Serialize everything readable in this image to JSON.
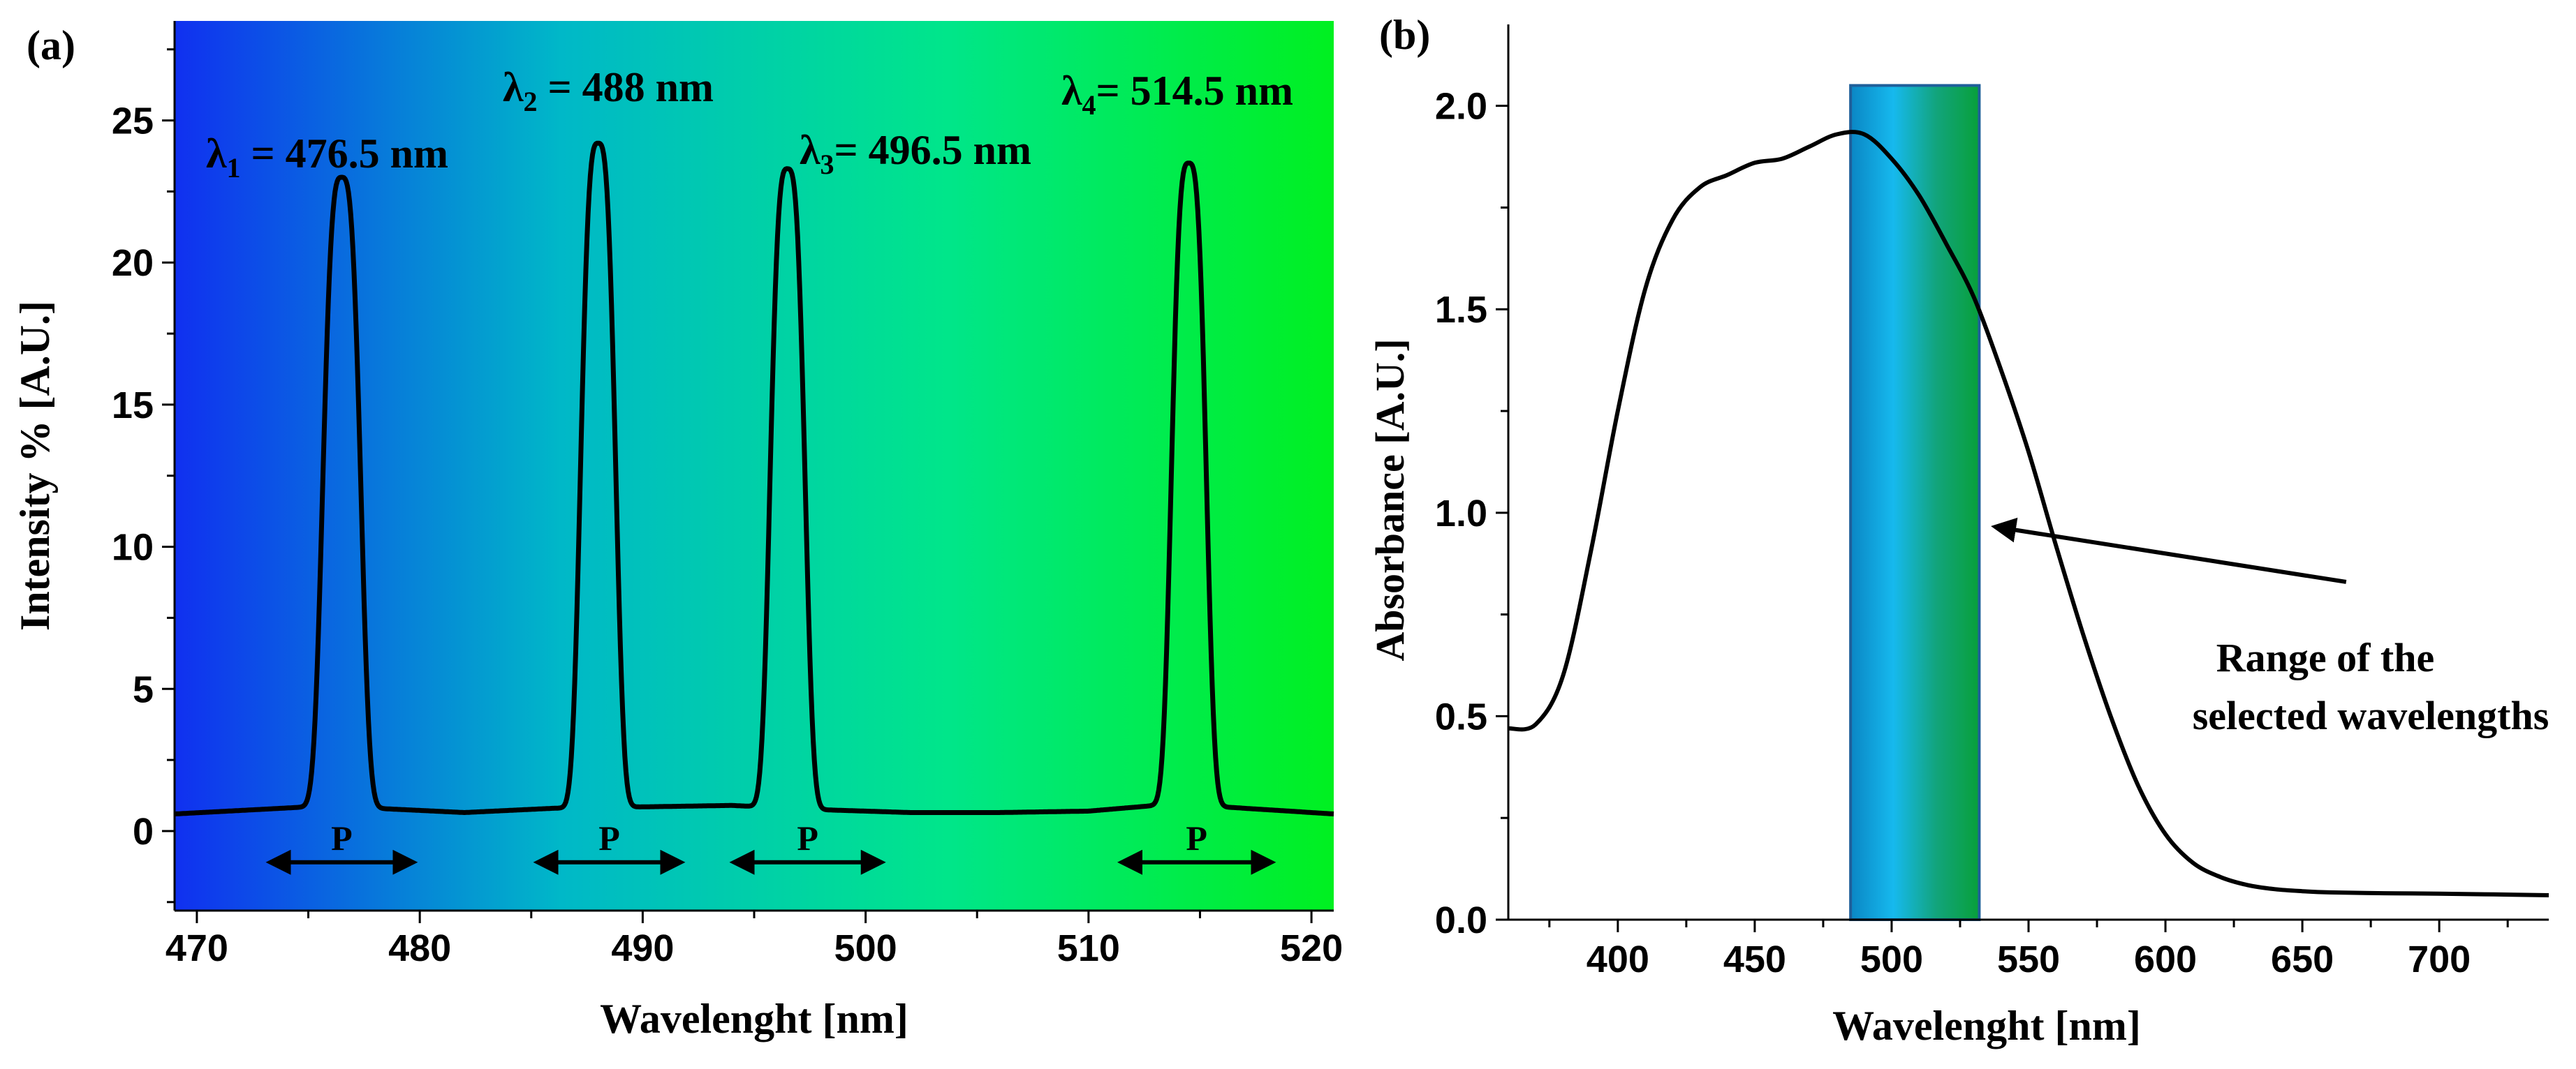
{
  "chart_data": [
    {
      "type": "line",
      "panel_label": "(a)",
      "xlabel": "Wavelenght [nm]",
      "ylabel": "Intensity % [A.U.]",
      "xlim": [
        469,
        521
      ],
      "ylim": [
        -2.8,
        28.5
      ],
      "xticks": [
        470,
        480,
        490,
        500,
        510,
        520
      ],
      "yticks": [
        0,
        5,
        10,
        15,
        20,
        25
      ],
      "background_gradient": [
        "#1030f0",
        "#00b8c8",
        "#00e68a",
        "#00f020"
      ],
      "peaks": [
        {
          "center": 476.5,
          "height": 23.0,
          "sigma": 0.78,
          "label_sym": "λ",
          "label_sub": "1",
          "label_rest": " = 476.5 nm"
        },
        {
          "center": 488.0,
          "height": 24.2,
          "sigma": 0.72,
          "label_sym": "λ",
          "label_sub": "2",
          "label_rest": " = 488 nm"
        },
        {
          "center": 496.5,
          "height": 23.3,
          "sigma": 0.72,
          "label_sym": "λ",
          "label_sub": "3",
          "label_rest": "= 496.5 nm"
        },
        {
          "center": 514.5,
          "height": 23.5,
          "sigma": 0.72,
          "label_sym": "λ",
          "label_sub": "4",
          "label_rest": "= 514.5 nm"
        }
      ],
      "baseline": {
        "x": [
          469,
          475,
          478,
          482,
          486,
          490,
          494,
          498,
          502,
          506,
          510,
          513,
          516,
          521
        ],
        "y": [
          0.6,
          0.85,
          0.8,
          0.65,
          0.8,
          0.85,
          0.9,
          0.75,
          0.65,
          0.65,
          0.7,
          0.9,
          0.85,
          0.6
        ]
      },
      "p_markers": [
        {
          "text": "P",
          "from": 473.0,
          "to": 480.0
        },
        {
          "text": "P",
          "from": 485.0,
          "to": 492.0
        },
        {
          "text": "P",
          "from": 493.8,
          "to": 501.0
        },
        {
          "text": "P",
          "from": 511.2,
          "to": 518.5
        }
      ]
    },
    {
      "type": "line",
      "panel_label": "(b)",
      "xlabel": "Wavelenght [nm]",
      "ylabel": "Absorbance [A.U.]",
      "xlim": [
        360,
        740
      ],
      "ylim": [
        0.0,
        2.2
      ],
      "xticks": [
        400,
        450,
        500,
        550,
        600,
        650,
        700
      ],
      "yticks": [
        0.0,
        0.5,
        1.0,
        1.5,
        2.0
      ],
      "ytick_labels": [
        "0.0",
        "0.5",
        "1.0",
        "1.5",
        "2.0"
      ],
      "series": [
        {
          "name": "Absorbance",
          "x": [
            360,
            370,
            380,
            390,
            400,
            410,
            420,
            430,
            440,
            450,
            460,
            470,
            480,
            490,
            500,
            510,
            520,
            530,
            540,
            550,
            560,
            570,
            580,
            590,
            600,
            610,
            620,
            630,
            640,
            650,
            660,
            680,
            700,
            720,
            740
          ],
          "y": [
            0.47,
            0.48,
            0.6,
            0.9,
            1.25,
            1.55,
            1.72,
            1.8,
            1.83,
            1.86,
            1.87,
            1.9,
            1.93,
            1.93,
            1.87,
            1.78,
            1.66,
            1.53,
            1.35,
            1.15,
            0.92,
            0.7,
            0.5,
            0.33,
            0.21,
            0.14,
            0.105,
            0.085,
            0.075,
            0.07,
            0.067,
            0.065,
            0.064,
            0.062,
            0.06
          ]
        }
      ],
      "highlight_band": {
        "from": 485,
        "to": 532,
        "ymax": 2.05,
        "colors": [
          "#0a86c4",
          "#16b9ee",
          "#12a47c",
          "#08a03a"
        ]
      },
      "annotation": {
        "lines": [
          "Range of the",
          "selected wavelengths"
        ],
        "arrow_from": [
          666,
          0.83
        ],
        "arrow_to": [
          535,
          0.96
        ]
      }
    }
  ]
}
